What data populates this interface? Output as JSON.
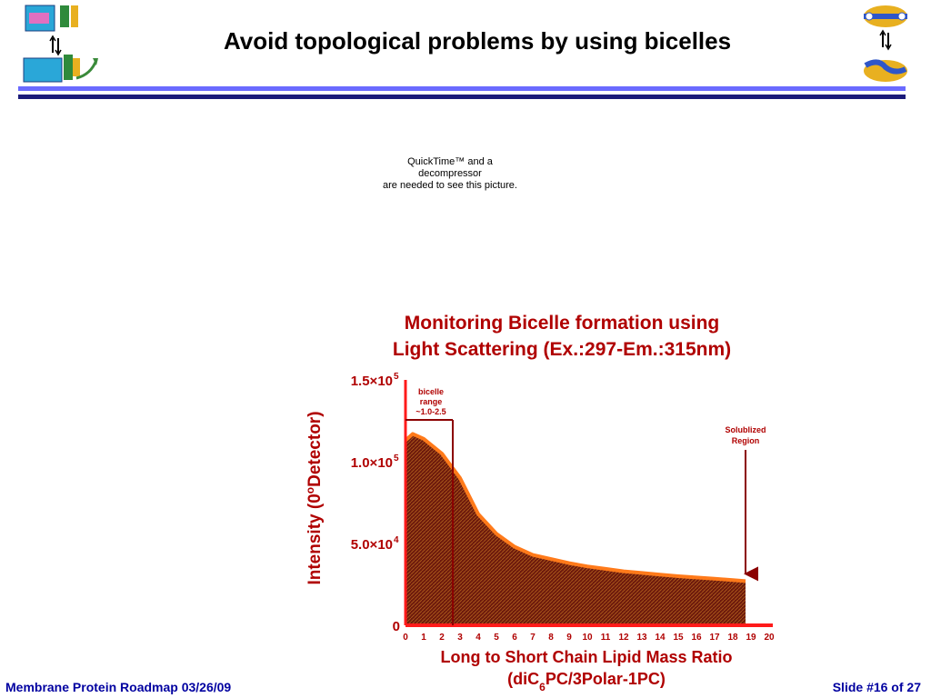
{
  "slide": {
    "title": "Avoid topological problems by using bicelles",
    "placeholder_lines": [
      "QuickTime™ and a",
      "decompressor",
      "are needed to see this picture."
    ],
    "footer_left": "Membrane Protein Roadmap 03/26/09",
    "footer_right": "Slide #16 of 27",
    "colors": {
      "rule_light": "#6a6aff",
      "rule_dark": "#1b1b7a",
      "footer": "#0000a0",
      "chart_text": "#b00000"
    }
  },
  "icons": {
    "left": "membrane-protein-diagram-icon",
    "right": "bicelle-diagram-icon"
  },
  "chart_data": {
    "type": "area",
    "title_lines": [
      "Monitoring Bicelle formation using",
      "Light Scattering (Ex.:297-Em.:315nm)"
    ],
    "xlabel_lines": [
      "Long to Short Chain Lipid Mass Ratio",
      "(diC6PC/3Polar-1PC)"
    ],
    "ylabel": "Intensity (0oDetector)",
    "x_ticks": [
      "0",
      "1",
      "2",
      "3",
      "4",
      "5",
      "6",
      "7",
      "8",
      "9",
      "10",
      "11",
      "12",
      "13",
      "14",
      "15",
      "16",
      "17",
      "18",
      "19",
      "20"
    ],
    "y_ticks": [
      {
        "mantissa": "0",
        "exp": "",
        "value": 0
      },
      {
        "mantissa": "5.0×10",
        "exp": "4",
        "value": 50000
      },
      {
        "mantissa": "1.0×10",
        "exp": "5",
        "value": 100000
      },
      {
        "mantissa": "1.5×10",
        "exp": "5",
        "value": 150000
      }
    ],
    "xlim": [
      0,
      20
    ],
    "ylim": [
      0,
      150000
    ],
    "x": [
      0,
      0.4,
      1,
      2,
      3,
      4,
      5,
      6,
      7,
      8,
      9,
      10,
      11,
      12,
      13,
      14,
      15,
      16,
      17,
      18,
      18.7
    ],
    "y": [
      113000,
      117000,
      114000,
      105000,
      90000,
      68000,
      56000,
      48000,
      43000,
      40500,
      38000,
      36000,
      34500,
      33000,
      32000,
      31000,
      30000,
      29200,
      28500,
      27600,
      27000
    ],
    "annotations": [
      {
        "lines": [
          "bicelle",
          "range",
          "~1.0-2.5"
        ],
        "x": 2.6
      },
      {
        "lines": [
          "Solublized",
          "Region"
        ],
        "x": 18.7
      }
    ],
    "colors": {
      "fill": "#6e1a0c",
      "line": "#ff7a1a",
      "axis": "#ff1a1a",
      "arrow": "#8b0000",
      "text": "#b00000"
    }
  }
}
